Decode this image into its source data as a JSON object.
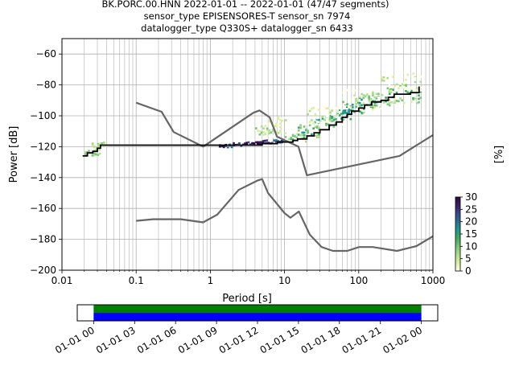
{
  "chart_data": [
    {
      "type": "heatmap",
      "title_lines": [
        "BK.PORC.00.HNN   2022-01-01 -- 2022-01-01  (47/47 segments)",
        "sensor_type EPISENSORES-T sensor_sn 7974",
        "datalogger_type Q330S+ datalogger_sn 6433"
      ],
      "xlabel": "Period [s]",
      "ylabel": "Power [dB]",
      "x_scale": "log",
      "xlim": [
        0.01,
        1000
      ],
      "ylim": [
        -200,
        -50
      ],
      "x_ticks": [
        0.01,
        0.1,
        1,
        10,
        100,
        1000
      ],
      "x_tick_labels": [
        "0.01",
        "0.1",
        "1",
        "10",
        "100",
        "1000"
      ],
      "y_ticks": [
        -200,
        -180,
        -160,
        -140,
        -120,
        -100,
        -80,
        -60
      ],
      "y_tick_labels": [
        "−200",
        "−180",
        "−160",
        "−140",
        "−120",
        "−100",
        "−80",
        "−60"
      ],
      "grid": true,
      "colorbar": {
        "label": "[%]",
        "range": [
          0,
          30
        ],
        "ticks": [
          0,
          5,
          10,
          15,
          20,
          25,
          30
        ],
        "tick_labels": [
          "0",
          "5",
          "10",
          "15",
          "20",
          "25",
          "30"
        ],
        "colors": [
          "#ffffe5",
          "#d9f0a3",
          "#addd8e",
          "#78c679",
          "#41ab5d",
          "#1d9a8e",
          "#2c6f91",
          "#3b4a8c",
          "#3d1d5e",
          "#2d0a3e"
        ]
      },
      "mode_line": {
        "color": "#000000",
        "x": [
          0.019,
          0.022,
          0.026,
          0.03,
          0.033,
          0.04,
          0.1,
          0.5,
          1,
          3,
          5,
          8,
          10,
          13,
          15,
          20,
          25,
          30,
          40,
          50,
          60,
          70,
          80,
          100,
          120,
          150,
          200,
          250,
          300,
          400,
          500,
          650
        ],
        "y": [
          -126,
          -124,
          -123,
          -121,
          -119,
          -119,
          -119,
          -119,
          -119,
          -119,
          -118,
          -117,
          -117,
          -116,
          -115,
          -113,
          -111,
          -109,
          -106,
          -104,
          -101,
          -99,
          -97,
          -95,
          -93,
          -91,
          -90,
          -88,
          -86,
          -86,
          -85,
          -81
        ]
      },
      "nlnm": {
        "color": "#666666",
        "x": [
          0.1,
          0.17,
          0.4,
          0.8,
          1.24,
          2.4,
          4.3,
          5,
          6,
          10,
          12,
          15.6,
          21.9,
          31.6,
          45,
          70,
          101,
          154,
          328,
          600,
          1000
        ],
        "y": [
          -168,
          -167,
          -167,
          -169,
          -164,
          -148,
          -142,
          -141,
          -150,
          -163,
          -166,
          -162,
          -177,
          -185,
          -187.5,
          -187.5,
          -185,
          -185,
          -187.5,
          -184.4,
          -178
        ]
      },
      "nhnm": {
        "color": "#666666",
        "x": [
          0.1,
          0.22,
          0.32,
          0.8,
          3.8,
          4.6,
          6.3,
          7.9,
          15.4,
          20,
          354.8,
          1000
        ],
        "y": [
          -91.5,
          -97.4,
          -110.5,
          -120,
          -98,
          -96.5,
          -101,
          -113.5,
          -120,
          -138.5,
          -126,
          -112.5
        ]
      },
      "cloud_rows": [
        {
          "x_start": 0.02,
          "x_end": 0.033,
          "y_center": -124,
          "level": 3,
          "spread": 2
        },
        {
          "x_start": 0.025,
          "x_end": 0.04,
          "y_center": -119,
          "level": 2,
          "spread": 2
        },
        {
          "x_start": 1.3,
          "x_end": 2.0,
          "y_center": -119.5,
          "level": 8,
          "spread": 1
        },
        {
          "x_start": 2.0,
          "x_end": 3.0,
          "y_center": -118.5,
          "level": 8,
          "spread": 1
        },
        {
          "x_start": 3.0,
          "x_end": 5.0,
          "y_center": -118,
          "level": 9,
          "spread": 1
        },
        {
          "x_start": 5.0,
          "x_end": 7.0,
          "y_center": -117,
          "level": 8,
          "spread": 1
        },
        {
          "x_start": 7.0,
          "x_end": 10.0,
          "y_center": -116.5,
          "level": 7,
          "spread": 1
        },
        {
          "x_start": 4.0,
          "x_end": 9.0,
          "y_center": -110,
          "level": 2,
          "spread": 4
        },
        {
          "x_start": 6.0,
          "x_end": 12.0,
          "y_center": -104,
          "level": 1,
          "spread": 3
        },
        {
          "x_start": 10.0,
          "x_end": 20.0,
          "y_center": -114,
          "level": 3,
          "spread": 3
        },
        {
          "x_start": 15.0,
          "x_end": 30.0,
          "y_center": -110,
          "level": 4,
          "spread": 4
        },
        {
          "x_start": 25.0,
          "x_end": 50.0,
          "y_center": -104,
          "level": 4,
          "spread": 4
        },
        {
          "x_start": 40.0,
          "x_end": 80.0,
          "y_center": -99,
          "level": 5,
          "spread": 4
        },
        {
          "x_start": 60.0,
          "x_end": 120.0,
          "y_center": -95,
          "level": 5,
          "spread": 4
        },
        {
          "x_start": 100.0,
          "x_end": 200.0,
          "y_center": -91,
          "level": 4,
          "spread": 5
        },
        {
          "x_start": 150.0,
          "x_end": 300.0,
          "y_center": -88,
          "level": 3,
          "spread": 6
        },
        {
          "x_start": 250.0,
          "x_end": 700.0,
          "y_center": -85,
          "level": 3,
          "spread": 7
        },
        {
          "x_start": 20.0,
          "x_end": 60.0,
          "y_center": -100,
          "level": 1,
          "spread": 6
        },
        {
          "x_start": 60.0,
          "x_end": 200.0,
          "y_center": -90,
          "level": 1,
          "spread": 7
        },
        {
          "x_start": 200.0,
          "x_end": 700.0,
          "y_center": -78,
          "level": 1,
          "spread": 6
        }
      ]
    },
    {
      "type": "bar",
      "title": "",
      "x_tick_labels": [
        "01-01 00",
        "01-01 03",
        "01-01 06",
        "01-01 09",
        "01-01 12",
        "01-01 15",
        "01-01 18",
        "01-01 21",
        "01-02 00"
      ],
      "x_tick_hours": [
        0,
        3,
        6,
        9,
        12,
        15,
        18,
        21,
        24
      ],
      "xlim_hours": [
        -1.2,
        25.2
      ],
      "coverage": [
        {
          "start_hour": 0,
          "end_hour": 24,
          "color": "#008000"
        },
        {
          "start_hour": 0,
          "end_hour": 24,
          "color": "#0000ff"
        }
      ]
    }
  ]
}
